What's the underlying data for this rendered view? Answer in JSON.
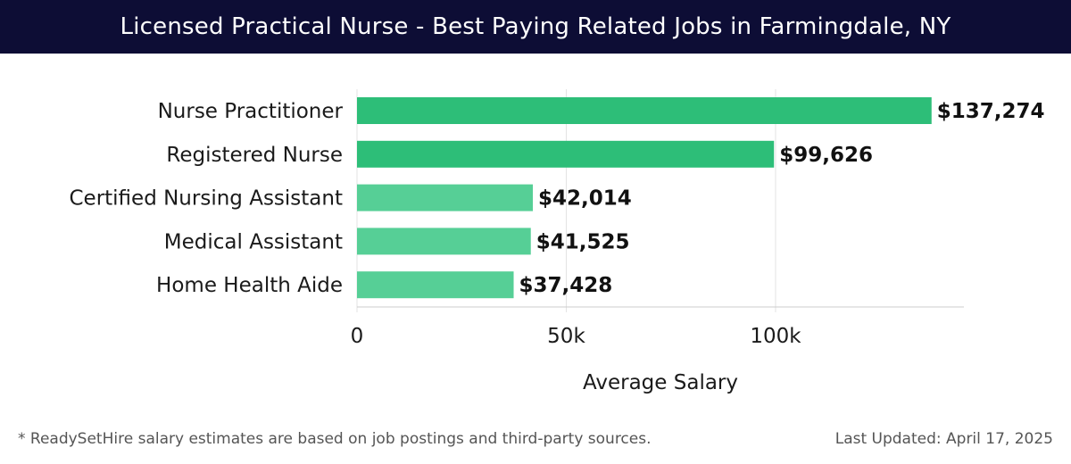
{
  "header": {
    "title": "Licensed Practical Nurse - Best Paying Related Jobs in Farmingdale, NY"
  },
  "chart_data": {
    "type": "bar",
    "orientation": "horizontal",
    "title": "Licensed Practical Nurse - Best Paying Related Jobs in Farmingdale, NY",
    "xlabel": "Average Salary",
    "ylabel": "",
    "categories": [
      "Nurse Practitioner",
      "Registered Nurse",
      "Certified Nursing Assistant",
      "Medical Assistant",
      "Home Health Aide"
    ],
    "values": [
      137274,
      99626,
      42014,
      41525,
      37428
    ],
    "value_labels": [
      "$137,274",
      "$99,626",
      "$42,014",
      "$41,525",
      "$37,428"
    ],
    "xlim": [
      0,
      145000
    ],
    "ticks": [
      0,
      50000,
      100000
    ],
    "tick_labels": [
      "0",
      "50k",
      "100k"
    ],
    "grid": true,
    "colors": {
      "top": "#2dbe78",
      "other": "#56cf96"
    }
  },
  "footer": {
    "note": "* ReadySetHire salary estimates are based on job postings and third-party sources.",
    "updated": "Last Updated: April 17, 2025"
  }
}
